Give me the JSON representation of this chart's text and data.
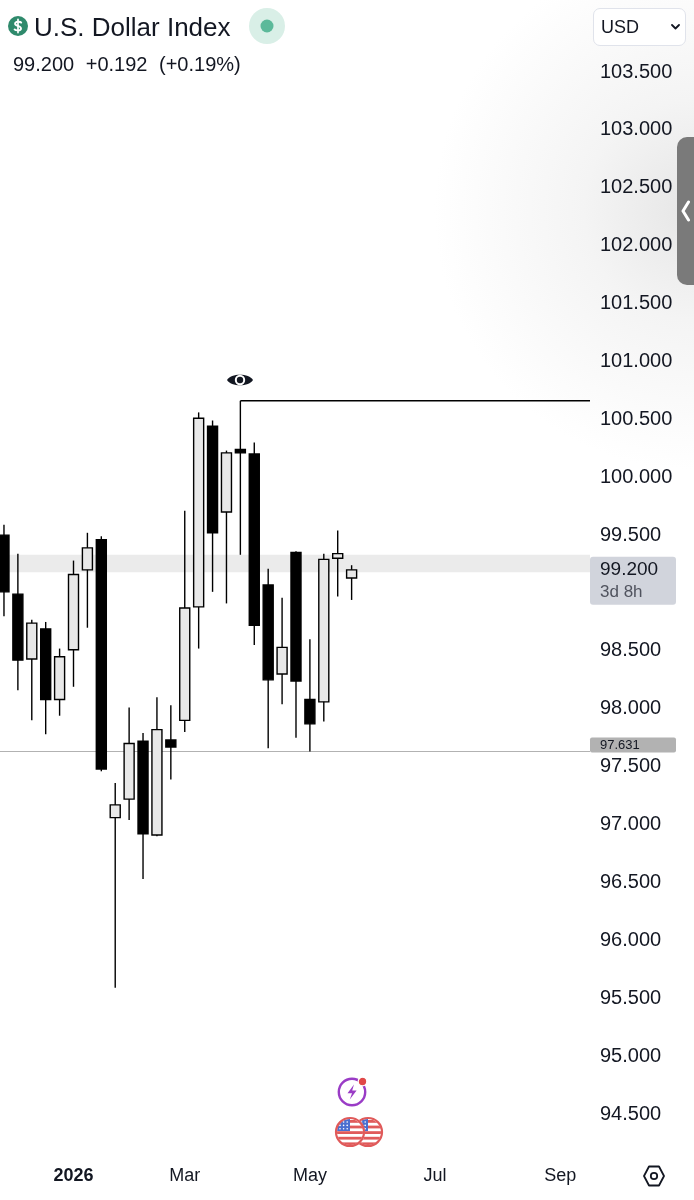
{
  "chart_data": {
    "type": "candlestick",
    "title": "U.S. Dollar Index",
    "subtitle": "99.200 +0.192 (+0.19%)",
    "x": [
      "2025-12-01",
      "2025-12-08",
      "2025-12-15",
      "2025-12-22",
      "2025-12-29",
      "2026-01-05",
      "2026-01-12",
      "2026-01-19",
      "2026-01-26",
      "2026-02-02",
      "2026-02-09",
      "2026-02-16",
      "2026-02-23",
      "2026-03-02",
      "2026-03-09",
      "2026-03-16",
      "2026-03-23",
      "2026-03-30",
      "2026-04-06",
      "2026-04-13",
      "2026-04-20",
      "2026-04-27",
      "2026-05-04",
      "2026-05-11",
      "2026-05-18",
      "2026-05-25"
    ],
    "ohlc": [
      [
        99.5,
        99.59,
        98.8,
        99.01
      ],
      [
        98.99,
        99.34,
        98.16,
        98.42
      ],
      [
        98.43,
        98.77,
        97.9,
        98.74
      ],
      [
        98.69,
        98.75,
        97.78,
        98.08
      ],
      [
        98.08,
        98.52,
        97.94,
        98.45
      ],
      [
        98.51,
        99.28,
        98.19,
        99.16
      ],
      [
        99.2,
        99.52,
        98.7,
        99.39
      ],
      [
        99.46,
        99.49,
        97.46,
        97.48
      ],
      [
        97.06,
        97.36,
        95.59,
        97.17
      ],
      [
        97.22,
        98.01,
        97.04,
        97.7
      ],
      [
        97.72,
        97.79,
        96.53,
        96.92
      ],
      [
        96.91,
        98.1,
        96.9,
        97.82
      ],
      [
        97.73,
        98.03,
        97.39,
        97.67
      ],
      [
        97.9,
        99.71,
        97.8,
        98.87
      ],
      [
        98.88,
        100.56,
        98.52,
        100.51
      ],
      [
        100.44,
        100.49,
        99.01,
        99.52
      ],
      [
        99.7,
        100.23,
        98.91,
        100.21
      ],
      [
        100.24,
        100.66,
        99.33,
        100.21
      ],
      [
        100.2,
        100.3,
        98.55,
        98.72
      ],
      [
        99.07,
        99.21,
        97.66,
        98.25
      ],
      [
        98.3,
        98.96,
        98.04,
        98.53
      ],
      [
        99.35,
        99.36,
        97.75,
        98.24
      ],
      [
        98.08,
        98.6,
        97.63,
        97.87
      ],
      [
        98.06,
        99.34,
        97.89,
        99.29
      ],
      [
        99.3,
        99.54,
        98.97,
        99.34
      ],
      [
        99.13,
        99.24,
        98.94,
        99.2
      ]
    ],
    "color": "#000000",
    "colors": [
      "#000000",
      "#000000",
      "#e8e8e8",
      "#000000",
      "#e8e8e8",
      "#e8e8e8",
      "#e8e8e8",
      "#000000",
      "#e8e8e8",
      "#e8e8e8",
      "#000000",
      "#e8e8e8",
      "#000000",
      "#e8e8e8",
      "#e8e8e8",
      "#000000",
      "#e8e8e8",
      "#000000",
      "#000000",
      "#000000",
      "#e8e8e8",
      "#000000",
      "#000000",
      "#e8e8e8",
      "#e8e8e8",
      "#e8e8e8"
    ],
    "series": [
      {
        "type": "line",
        "x": [
          "2026-03-30",
          "2026-09-22"
        ],
        "values": [
          100.66,
          100.66
        ],
        "color": "#000000"
      }
    ],
    "xlim": [
      "2025-11-29",
      "2026-09-22"
    ],
    "xticks": [
      {
        "value": "2026-01-05",
        "label": "2026"
      },
      {
        "value": "2026-03-02",
        "label": "Mar"
      },
      {
        "value": "2026-05-04",
        "label": "May"
      },
      {
        "value": "2026-07-06",
        "label": "Jul"
      },
      {
        "value": "2026-09-07",
        "label": "Sep"
      }
    ],
    "ylim": [
      94.5,
      103.5
    ],
    "yticks": [
      {
        "value": 94.5,
        "label": "94.500"
      },
      {
        "value": 95,
        "label": "95.000"
      },
      {
        "value": 95.5,
        "label": "95.500"
      },
      {
        "value": 96,
        "label": "96.000"
      },
      {
        "value": 96.5,
        "label": "96.500"
      },
      {
        "value": 97,
        "label": "97.000"
      },
      {
        "value": 97.5,
        "label": "97.500"
      },
      {
        "value": 98,
        "label": "98.000"
      },
      {
        "value": 98.5,
        "label": "98.500"
      },
      {
        "value": 99.5,
        "label": "99.500"
      },
      {
        "value": 100,
        "label": "100.000"
      },
      {
        "value": 100.5,
        "label": "100.500"
      },
      {
        "value": 101,
        "label": "101.000"
      },
      {
        "value": 101.5,
        "label": "101.500"
      },
      {
        "value": 102,
        "label": "102.000"
      },
      {
        "value": 102.5,
        "label": "102.500"
      },
      {
        "value": 103,
        "label": "103.000"
      },
      {
        "value": 103.5,
        "label": "103.500"
      }
    ],
    "ref_lines": [
      {
        "axis": "y",
        "value": 97.631,
        "label": "97.631",
        "color": "#b2b2b2"
      }
    ],
    "bands": [
      {
        "axis": "y",
        "from": 99.18,
        "to": 99.33,
        "color": "#ebebeb"
      }
    ],
    "annotations": [
      "99.200",
      "3d 8h",
      "USD"
    ]
  }
}
